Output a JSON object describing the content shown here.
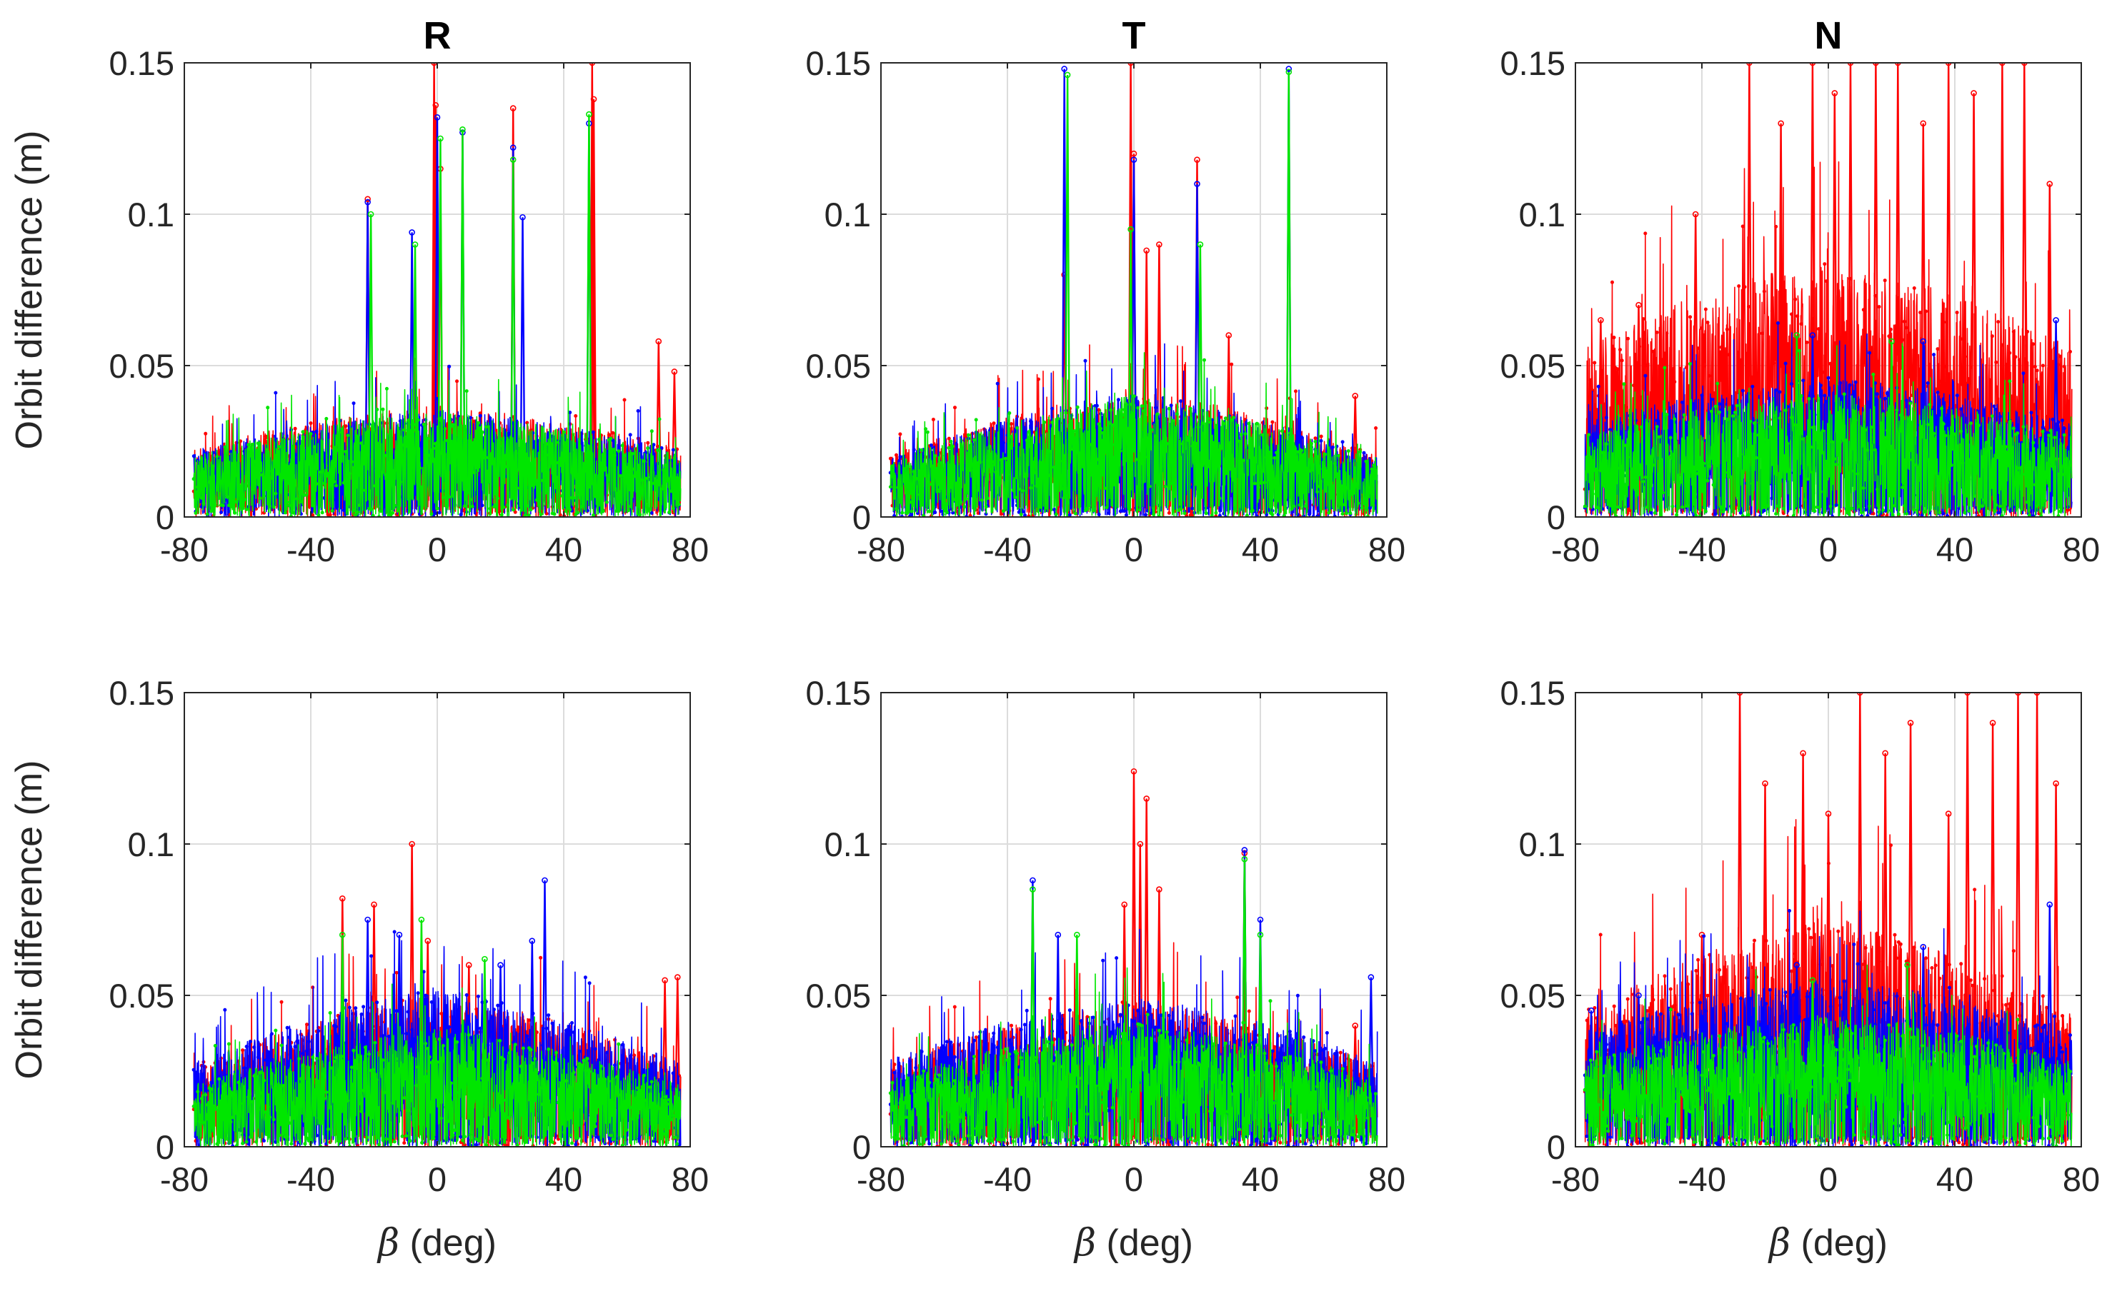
{
  "figure": {
    "y_axis_label": "Orbit difference (m)",
    "x_axis_label_symbol": "β",
    "x_axis_label_unit": " (deg)",
    "series_colors": {
      "red": "#ff0000",
      "blue": "#0000ff",
      "green": "#00e600"
    }
  },
  "chart_data": [
    {
      "type": "line",
      "row": 1,
      "col": 1,
      "title": "R",
      "xlabel": "",
      "ylabel": "Orbit difference (m)",
      "xlim": [
        -80,
        80
      ],
      "ylim": [
        0,
        0.15
      ],
      "xticks": [
        -80,
        -40,
        0,
        40,
        80
      ],
      "xtick_labels": [
        "-80",
        "-40",
        "0",
        "40",
        "80"
      ],
      "yticks": [
        0,
        0.05,
        0.1,
        0.15
      ],
      "ytick_labels": [
        "0",
        "0.05",
        "0.1",
        "0.15"
      ],
      "x_range": [
        -77,
        77
      ],
      "grid": true,
      "series": [
        {
          "name": "red",
          "color": "#ff0000",
          "base": 0.012,
          "spread": 0.02,
          "edge_drop": 0.006,
          "spikes": [
            [
              -22,
              0.105
            ],
            [
              -1,
              0.15
            ],
            [
              -0.5,
              0.136
            ],
            [
              1,
              0.115
            ],
            [
              24,
              0.135
            ],
            [
              49,
              0.15
            ],
            [
              49.5,
              0.138
            ],
            [
              70,
              0.058
            ],
            [
              75,
              0.048
            ]
          ]
        },
        {
          "name": "blue",
          "color": "#0000ff",
          "base": 0.012,
          "spread": 0.019,
          "edge_drop": 0.006,
          "spikes": [
            [
              -22,
              0.104
            ],
            [
              -8,
              0.094
            ],
            [
              0,
              0.132
            ],
            [
              8,
              0.127
            ],
            [
              24,
              0.122
            ],
            [
              27,
              0.099
            ],
            [
              48,
              0.13
            ]
          ]
        },
        {
          "name": "green",
          "color": "#00e600",
          "base": 0.011,
          "spread": 0.019,
          "edge_drop": 0.006,
          "spikes": [
            [
              -21,
              0.1
            ],
            [
              -7,
              0.09
            ],
            [
              1,
              0.125
            ],
            [
              8,
              0.128
            ],
            [
              24,
              0.118
            ],
            [
              48,
              0.133
            ]
          ]
        }
      ]
    },
    {
      "type": "line",
      "row": 1,
      "col": 2,
      "title": "T",
      "xlabel": "",
      "ylabel": "",
      "xlim": [
        -80,
        80
      ],
      "ylim": [
        0,
        0.15
      ],
      "xticks": [
        -80,
        -40,
        0,
        40,
        80
      ],
      "xtick_labels": [
        "-80",
        "-40",
        "0",
        "40",
        "80"
      ],
      "yticks": [
        0,
        0.05,
        0.1,
        0.15
      ],
      "ytick_labels": [
        "0",
        "0.05",
        "0.1",
        "0.15"
      ],
      "x_range": [
        -77,
        77
      ],
      "grid": true,
      "series": [
        {
          "name": "red",
          "color": "#ff0000",
          "base": 0.013,
          "spread": 0.024,
          "edge_drop": 0.012,
          "spikes": [
            [
              -22,
              0.08
            ],
            [
              -1,
              0.15
            ],
            [
              0,
              0.12
            ],
            [
              4,
              0.088
            ],
            [
              8,
              0.09
            ],
            [
              20,
              0.118
            ],
            [
              30,
              0.06
            ],
            [
              70,
              0.04
            ]
          ]
        },
        {
          "name": "blue",
          "color": "#0000ff",
          "base": 0.013,
          "spread": 0.023,
          "edge_drop": 0.012,
          "spikes": [
            [
              -22,
              0.148
            ],
            [
              0,
              0.118
            ],
            [
              20,
              0.11
            ],
            [
              49,
              0.148
            ]
          ]
        },
        {
          "name": "green",
          "color": "#00e600",
          "base": 0.012,
          "spread": 0.023,
          "edge_drop": 0.012,
          "spikes": [
            [
              -21,
              0.146
            ],
            [
              -1,
              0.095
            ],
            [
              21,
              0.09
            ],
            [
              49,
              0.147
            ]
          ]
        }
      ]
    },
    {
      "type": "line",
      "row": 1,
      "col": 3,
      "title": "N",
      "xlabel": "",
      "ylabel": "",
      "xlim": [
        -80,
        80
      ],
      "ylim": [
        0,
        0.15
      ],
      "xticks": [
        -80,
        -40,
        0,
        40,
        80
      ],
      "xtick_labels": [
        "-80",
        "-40",
        "0",
        "40",
        "80"
      ],
      "yticks": [
        0,
        0.05,
        0.1,
        0.15
      ],
      "ytick_labels": [
        "0",
        "0.05",
        "0.1",
        "0.15"
      ],
      "x_range": [
        -77,
        77
      ],
      "grid": true,
      "series": [
        {
          "name": "red",
          "color": "#ff0000",
          "base": 0.028,
          "spread": 0.045,
          "edge_drop": 0.01,
          "spikes": [
            [
              -72,
              0.065
            ],
            [
              -60,
              0.07
            ],
            [
              -42,
              0.1
            ],
            [
              -25,
              0.15
            ],
            [
              -15,
              0.13
            ],
            [
              -5,
              0.15
            ],
            [
              2,
              0.14
            ],
            [
              7,
              0.15
            ],
            [
              15,
              0.15
            ],
            [
              22,
              0.15
            ],
            [
              30,
              0.13
            ],
            [
              38,
              0.15
            ],
            [
              46,
              0.14
            ],
            [
              55,
              0.15
            ],
            [
              62,
              0.15
            ],
            [
              70,
              0.11
            ]
          ]
        },
        {
          "name": "blue",
          "color": "#0000ff",
          "base": 0.015,
          "spread": 0.025,
          "edge_drop": 0.005,
          "spikes": [
            [
              -5,
              0.06
            ],
            [
              30,
              0.058
            ],
            [
              72,
              0.065
            ]
          ]
        },
        {
          "name": "green",
          "color": "#00e600",
          "base": 0.013,
          "spread": 0.023,
          "edge_drop": 0.005,
          "spikes": [
            [
              -10,
              0.06
            ],
            [
              20,
              0.058
            ]
          ]
        }
      ]
    },
    {
      "type": "line",
      "row": 2,
      "col": 1,
      "title": "",
      "xlabel": "β (deg)",
      "ylabel": "Orbit difference (m)",
      "xlim": [
        -80,
        80
      ],
      "ylim": [
        0,
        0.15
      ],
      "xticks": [
        -80,
        -40,
        0,
        40,
        80
      ],
      "xtick_labels": [
        "-80",
        "-40",
        "0",
        "40",
        "80"
      ],
      "yticks": [
        0,
        0.05,
        0.1,
        0.15
      ],
      "ytick_labels": [
        "0",
        "0.05",
        "0.1",
        "0.15"
      ],
      "x_range": [
        -77,
        77
      ],
      "grid": true,
      "series": [
        {
          "name": "red",
          "color": "#ff0000",
          "base": 0.018,
          "spread": 0.026,
          "edge_drop": 0.012,
          "spikes": [
            [
              -30,
              0.082
            ],
            [
              -20,
              0.08
            ],
            [
              -8,
              0.1
            ],
            [
              -3,
              0.068
            ],
            [
              10,
              0.06
            ],
            [
              72,
              0.055
            ],
            [
              76,
              0.056
            ]
          ]
        },
        {
          "name": "blue",
          "color": "#0000ff",
          "base": 0.02,
          "spread": 0.026,
          "edge_drop": 0.014,
          "spikes": [
            [
              -22,
              0.075
            ],
            [
              -12,
              0.07
            ],
            [
              34,
              0.088
            ],
            [
              30,
              0.068
            ],
            [
              20,
              0.06
            ]
          ]
        },
        {
          "name": "green",
          "color": "#00e600",
          "base": 0.014,
          "spread": 0.02,
          "edge_drop": 0.01,
          "spikes": [
            [
              -30,
              0.07
            ],
            [
              -5,
              0.075
            ],
            [
              15,
              0.062
            ]
          ]
        }
      ]
    },
    {
      "type": "line",
      "row": 2,
      "col": 2,
      "title": "",
      "xlabel": "β (deg)",
      "ylabel": "",
      "xlim": [
        -80,
        80
      ],
      "ylim": [
        0,
        0.15
      ],
      "xticks": [
        -80,
        -40,
        0,
        40,
        80
      ],
      "xtick_labels": [
        "-80",
        "-40",
        "0",
        "40",
        "80"
      ],
      "yticks": [
        0,
        0.05,
        0.1,
        0.15
      ],
      "ytick_labels": [
        "0",
        "0.05",
        "0.1",
        "0.15"
      ],
      "x_range": [
        -77,
        77
      ],
      "grid": true,
      "series": [
        {
          "name": "red",
          "color": "#ff0000",
          "base": 0.016,
          "spread": 0.026,
          "edge_drop": 0.01,
          "spikes": [
            [
              0,
              0.124
            ],
            [
              4,
              0.115
            ],
            [
              2,
              0.1
            ],
            [
              -3,
              0.08
            ],
            [
              8,
              0.085
            ],
            [
              35,
              0.097
            ],
            [
              70,
              0.04
            ]
          ]
        },
        {
          "name": "blue",
          "color": "#0000ff",
          "base": 0.018,
          "spread": 0.025,
          "edge_drop": 0.01,
          "spikes": [
            [
              -32,
              0.088
            ],
            [
              -24,
              0.07
            ],
            [
              35,
              0.098
            ],
            [
              40,
              0.075
            ],
            [
              75,
              0.056
            ]
          ]
        },
        {
          "name": "green",
          "color": "#00e600",
          "base": 0.014,
          "spread": 0.022,
          "edge_drop": 0.01,
          "spikes": [
            [
              -32,
              0.085
            ],
            [
              -18,
              0.07
            ],
            [
              35,
              0.095
            ],
            [
              40,
              0.07
            ]
          ]
        }
      ]
    },
    {
      "type": "line",
      "row": 2,
      "col": 3,
      "title": "",
      "xlabel": "β (deg)",
      "ylabel": "",
      "xlim": [
        -80,
        80
      ],
      "ylim": [
        0,
        0.15
      ],
      "xticks": [
        -80,
        -40,
        0,
        40,
        80
      ],
      "xtick_labels": [
        "-80",
        "-40",
        "0",
        "40",
        "80"
      ],
      "yticks": [
        0,
        0.05,
        0.1,
        0.15
      ],
      "ytick_labels": [
        "0",
        "0.05",
        "0.1",
        "0.15"
      ],
      "x_range": [
        -77,
        77
      ],
      "grid": true,
      "series": [
        {
          "name": "red",
          "color": "#ff0000",
          "base": 0.024,
          "spread": 0.042,
          "edge_drop": 0.014,
          "spikes": [
            [
              -40,
              0.07
            ],
            [
              -28,
              0.15
            ],
            [
              -20,
              0.12
            ],
            [
              -8,
              0.13
            ],
            [
              0,
              0.11
            ],
            [
              10,
              0.15
            ],
            [
              18,
              0.13
            ],
            [
              26,
              0.14
            ],
            [
              38,
              0.11
            ],
            [
              44,
              0.15
            ],
            [
              52,
              0.14
            ],
            [
              60,
              0.15
            ],
            [
              66,
              0.15
            ],
            [
              72,
              0.12
            ]
          ]
        },
        {
          "name": "blue",
          "color": "#0000ff",
          "base": 0.02,
          "spread": 0.028,
          "edge_drop": 0.006,
          "spikes": [
            [
              -75,
              0.045
            ],
            [
              -60,
              0.05
            ],
            [
              -10,
              0.06
            ],
            [
              30,
              0.066
            ],
            [
              70,
              0.08
            ]
          ]
        },
        {
          "name": "green",
          "color": "#00e600",
          "base": 0.014,
          "spread": 0.024,
          "edge_drop": 0.006,
          "spikes": [
            [
              -5,
              0.055
            ],
            [
              25,
              0.06
            ]
          ]
        }
      ]
    }
  ]
}
